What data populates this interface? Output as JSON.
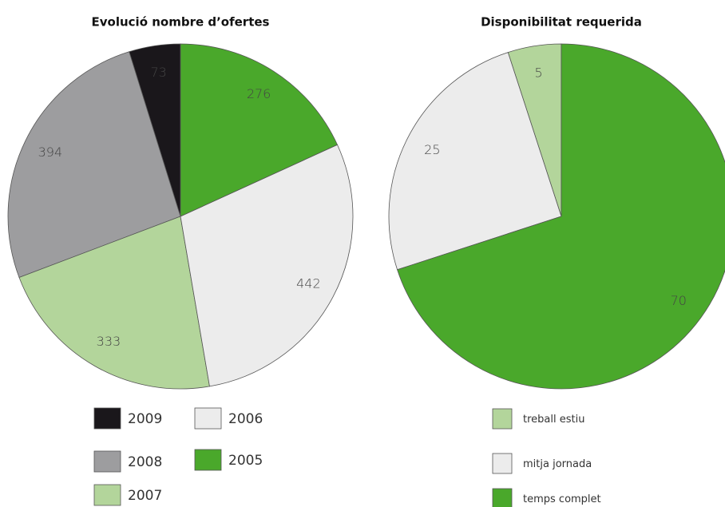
{
  "chart_data": [
    {
      "type": "pie",
      "title": "Evolució nombre d’ofertes",
      "categories": [
        "2009",
        "2008",
        "2007",
        "2006",
        "2005"
      ],
      "values": [
        73,
        394,
        333,
        442,
        276
      ],
      "colors": [
        "#1a171b",
        "#9d9d9f",
        "#b3d59b",
        "#ececec",
        "#4aa82b"
      ]
    },
    {
      "type": "pie",
      "title": "Disponibilitat requerida",
      "categories": [
        "treball estiu",
        "mitja jornada",
        "temps complet"
      ],
      "values": [
        5,
        25,
        70
      ],
      "colors": [
        "#b3d59b",
        "#ececec",
        "#4aa82b"
      ]
    }
  ]
}
